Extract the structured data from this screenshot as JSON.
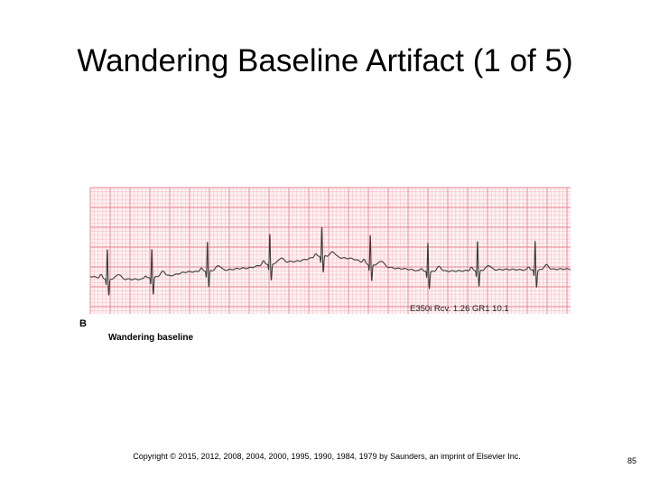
{
  "slide": {
    "title": "Wandering Baseline Artifact (1 of 5)",
    "panel_letter": "B",
    "figure_caption": "Wandering baseline",
    "device_label": "E350i Rcv. 1.26 GR1 10.1",
    "copyright": "Copyright © 2015, 2012, 2008, 2004, 2000, 1995, 1990, 1984, 1979 by Saunders, an imprint of Elsevier Inc.",
    "page_number": "85"
  },
  "ecg": {
    "grid_minor_color": "#f4b8bf",
    "grid_major_color": "#e7838f",
    "paper_color": "#fdf1f2",
    "trace_color": "#3a3a3a",
    "beat_times_s": [
      0.53,
      1.65,
      3.05,
      4.62,
      5.93,
      7.15,
      8.6,
      9.85,
      11.3
    ],
    "baseline_level_mm": [
      [
        0.0,
        -0.5
      ],
      [
        0.6,
        -1.2
      ],
      [
        1.3,
        -1.3
      ],
      [
        2.0,
        -0.5
      ],
      [
        2.6,
        0.6
      ],
      [
        3.4,
        1.0
      ],
      [
        4.0,
        1.5
      ],
      [
        4.6,
        2.6
      ],
      [
        5.2,
        3.2
      ],
      [
        6.0,
        4.6
      ],
      [
        6.6,
        4.0
      ],
      [
        7.2,
        2.4
      ],
      [
        7.9,
        1.4
      ],
      [
        8.6,
        0.6
      ],
      [
        9.3,
        0.8
      ],
      [
        10.0,
        1.0
      ],
      [
        10.6,
        1.2
      ],
      [
        11.3,
        1.0
      ],
      [
        12.0,
        1.3
      ]
    ]
  }
}
